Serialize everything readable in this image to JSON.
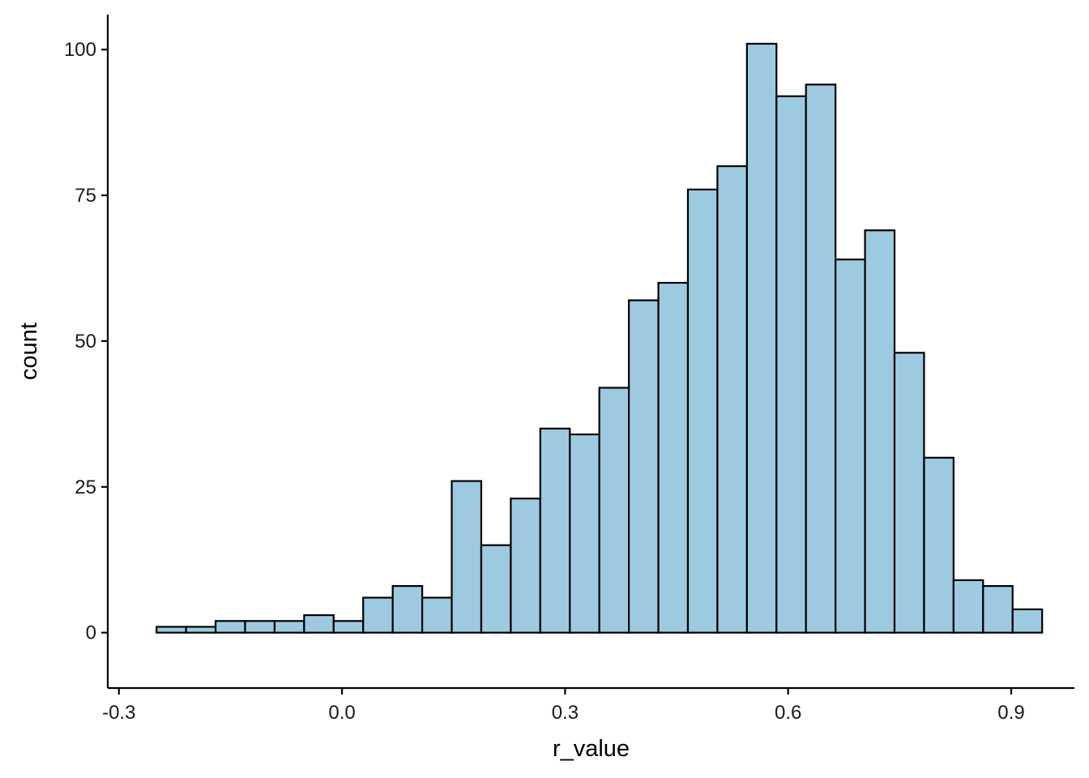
{
  "chart_data": {
    "type": "bar",
    "subtype": "histogram",
    "title": "",
    "xlabel": "r_value",
    "ylabel": "count",
    "xlim": [
      -0.315,
      0.985
    ],
    "ylim": [
      -9.5,
      106
    ],
    "x_ticks": [
      -0.3,
      0.0,
      0.3,
      0.6,
      0.9
    ],
    "x_tick_labels": [
      "-0.3",
      "0.0",
      "0.3",
      "0.6",
      "0.9"
    ],
    "y_ticks": [
      0,
      25,
      50,
      75,
      100
    ],
    "y_tick_labels": [
      "0",
      "25",
      "50",
      "75",
      "100"
    ],
    "bin_width": 0.0397,
    "bins": [
      {
        "x0": -0.2494,
        "x1": -0.2097,
        "count": 1
      },
      {
        "x0": -0.2097,
        "x1": -0.17,
        "count": 1
      },
      {
        "x0": -0.17,
        "x1": -0.1303,
        "count": 2
      },
      {
        "x0": -0.1303,
        "x1": -0.0906,
        "count": 2
      },
      {
        "x0": -0.0906,
        "x1": -0.0509,
        "count": 2
      },
      {
        "x0": -0.0509,
        "x1": -0.0112,
        "count": 3
      },
      {
        "x0": -0.0112,
        "x1": 0.0285,
        "count": 2
      },
      {
        "x0": 0.0285,
        "x1": 0.0682,
        "count": 6
      },
      {
        "x0": 0.0682,
        "x1": 0.1079,
        "count": 8
      },
      {
        "x0": 0.1079,
        "x1": 0.1476,
        "count": 6
      },
      {
        "x0": 0.1476,
        "x1": 0.1873,
        "count": 26
      },
      {
        "x0": 0.1873,
        "x1": 0.227,
        "count": 15
      },
      {
        "x0": 0.227,
        "x1": 0.2667,
        "count": 23
      },
      {
        "x0": 0.2667,
        "x1": 0.3064,
        "count": 35
      },
      {
        "x0": 0.3064,
        "x1": 0.3461,
        "count": 34
      },
      {
        "x0": 0.3461,
        "x1": 0.3858,
        "count": 42
      },
      {
        "x0": 0.3858,
        "x1": 0.4255,
        "count": 57
      },
      {
        "x0": 0.4255,
        "x1": 0.4652,
        "count": 60
      },
      {
        "x0": 0.4652,
        "x1": 0.5049,
        "count": 76
      },
      {
        "x0": 0.5049,
        "x1": 0.5446,
        "count": 80
      },
      {
        "x0": 0.5446,
        "x1": 0.5843,
        "count": 101
      },
      {
        "x0": 0.5843,
        "x1": 0.624,
        "count": 92
      },
      {
        "x0": 0.624,
        "x1": 0.6637,
        "count": 94
      },
      {
        "x0": 0.6637,
        "x1": 0.7034,
        "count": 64
      },
      {
        "x0": 0.7034,
        "x1": 0.7431,
        "count": 69
      },
      {
        "x0": 0.7431,
        "x1": 0.7828,
        "count": 48
      },
      {
        "x0": 0.7828,
        "x1": 0.8225,
        "count": 30
      },
      {
        "x0": 0.8225,
        "x1": 0.8622,
        "count": 9
      },
      {
        "x0": 0.8622,
        "x1": 0.9019,
        "count": 8
      },
      {
        "x0": 0.9019,
        "x1": 0.9416,
        "count": 4
      }
    ],
    "grid": false,
    "legend": "none",
    "bar_fill": "#9ecae1",
    "bar_stroke": "#000000"
  }
}
